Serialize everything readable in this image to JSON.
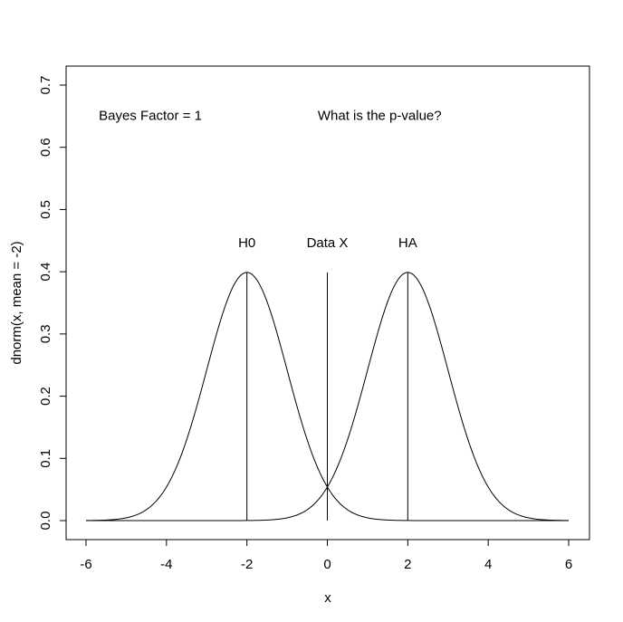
{
  "chart_data": {
    "type": "line",
    "xlabel": "x",
    "ylabel": "dnorm(x, mean = -2)",
    "xlim": [
      -6,
      6
    ],
    "ylim": [
      0,
      0.7
    ],
    "x_ticks": [
      -6,
      -4,
      -2,
      0,
      2,
      4,
      6
    ],
    "y_ticks": [
      0.0,
      0.1,
      0.2,
      0.3,
      0.4,
      0.5,
      0.6,
      0.7
    ],
    "y_tick_labels": [
      "0.0",
      "0.1",
      "0.2",
      "0.3",
      "0.4",
      "0.5",
      "0.6",
      "0.7"
    ],
    "grid": false,
    "series": [
      {
        "distribution": "normal",
        "mean": -2,
        "sd": 1,
        "x_range": [
          -6,
          6
        ]
      },
      {
        "distribution": "normal",
        "mean": 2,
        "sd": 1,
        "x_range": [
          -6,
          6
        ]
      }
    ],
    "vertical_lines": [
      {
        "x": -2,
        "y_top": 0.3989
      },
      {
        "x": 0,
        "y_top": 0.3989
      },
      {
        "x": 2,
        "y_top": 0.3989
      }
    ],
    "annotations": [
      {
        "text": "Bayes Factor = 1",
        "x": -4.4,
        "y": 0.65
      },
      {
        "text": "What is the p-value?",
        "x": 1.3,
        "y": 0.65
      },
      {
        "text": "H0",
        "x": -2,
        "y": 0.445
      },
      {
        "text": "Data X",
        "x": 0,
        "y": 0.445
      },
      {
        "text": "HA",
        "x": 0,
        "y": 0.445,
        "x_actual": 2
      }
    ]
  }
}
